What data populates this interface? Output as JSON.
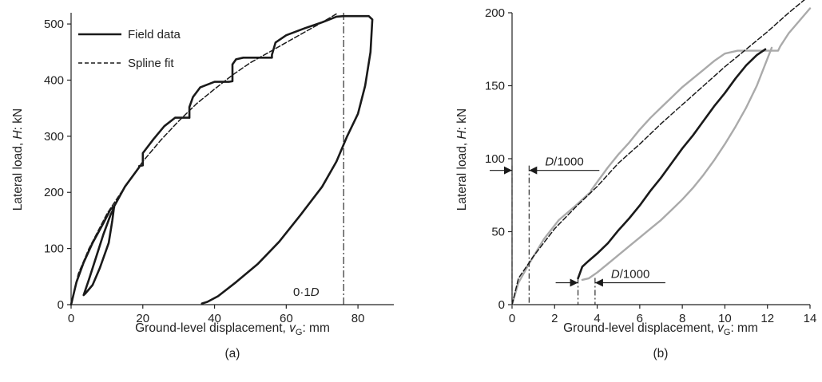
{
  "chart_data": [
    {
      "panel_label": "(a)",
      "type": "line",
      "xlabel_parts": [
        "Ground-level displacement, ",
        "v",
        "G",
        ": mm"
      ],
      "ylabel_parts": [
        "Lateral load, ",
        "H",
        ": kN"
      ],
      "xlim": [
        0,
        90
      ],
      "ylim": [
        0,
        520
      ],
      "xticks": [
        0,
        20,
        40,
        60,
        80
      ],
      "yticks": [
        0,
        100,
        200,
        300,
        400,
        500
      ],
      "grid": false,
      "legend_placement": "top-left",
      "series": [
        {
          "name": "Field data",
          "style": "solid",
          "color": "#1a1a1a",
          "x": [
            0,
            1.5,
            3.5,
            6,
            9,
            11,
            12,
            11.5,
            10.5,
            8,
            6,
            4,
            3.5,
            5,
            7,
            9,
            11,
            12,
            12,
            15,
            19,
            19,
            20,
            20,
            23,
            26,
            29,
            33,
            33,
            34,
            36,
            40,
            44,
            45,
            45,
            46,
            48,
            52,
            56,
            56,
            57,
            60,
            65,
            70,
            74,
            76,
            78,
            80,
            83,
            84,
            83.5,
            82,
            80,
            77,
            74,
            70,
            64,
            58,
            52,
            46,
            41,
            38,
            36.5
          ],
          "y": [
            0,
            40,
            75,
            110,
            145,
            170,
            175,
            150,
            110,
            65,
            35,
            20,
            17,
            45,
            85,
            125,
            160,
            173,
            175,
            210,
            245,
            247,
            248,
            270,
            295,
            318,
            333,
            333,
            352,
            370,
            387,
            397,
            397,
            398,
            428,
            437,
            440,
            440,
            440,
            445,
            467,
            480,
            492,
            503,
            513,
            514,
            514,
            514,
            514,
            508,
            450,
            390,
            340,
            300,
            255,
            210,
            160,
            112,
            72,
            40,
            15,
            5,
            2
          ]
        },
        {
          "name": "Spline fit",
          "style": "dashed",
          "color": "#1a1a1a",
          "x": [
            0,
            2,
            5,
            10,
            15,
            20,
            25,
            30,
            35,
            40,
            45,
            50,
            55,
            60,
            65,
            70,
            74
          ],
          "y": [
            0,
            55,
            100,
            162,
            210,
            255,
            293,
            327,
            358,
            384,
            409,
            431,
            449,
            467,
            485,
            503,
            518
          ]
        }
      ],
      "annotations": [
        {
          "text_parts": [
            "0·1",
            "D"
          ],
          "x": 76,
          "line": "vertical dash-dot"
        }
      ]
    },
    {
      "panel_label": "(b)",
      "type": "line",
      "xlabel_parts": [
        "Ground-level displacement, ",
        "v",
        "G",
        ": mm"
      ],
      "ylabel_parts": [
        "Lateral load, ",
        "H",
        ": kN"
      ],
      "xlim": [
        0,
        14
      ],
      "ylim": [
        0,
        200
      ],
      "xticks": [
        0,
        2,
        4,
        6,
        8,
        10,
        12,
        14
      ],
      "yticks": [
        0,
        50,
        100,
        150,
        200
      ],
      "grid": false,
      "series": [
        {
          "style": "solid",
          "color": "#aaaaaa",
          "x": [
            0,
            0.3,
            0.8,
            1.5,
            2.2,
            3,
            3.6,
            3.7,
            3.7,
            3.9,
            4.5,
            5,
            5.5,
            6,
            6.5,
            7,
            7.5,
            8,
            8.5,
            9,
            9.5,
            10,
            10.6,
            11.5,
            12.5,
            12.6,
            13,
            14
          ],
          "y": [
            0,
            15,
            28,
            45,
            58,
            68,
            76,
            77,
            78,
            82,
            94,
            103,
            111,
            120,
            128,
            135,
            142,
            149,
            155,
            161,
            167,
            172,
            174,
            174,
            174,
            177,
            186,
            203
          ]
        },
        {
          "style": "solid",
          "color": "#aaaaaa",
          "x": [
            12.2,
            11.5,
            11,
            10.5,
            10,
            9.5,
            9,
            8.5,
            8,
            7.5,
            7,
            6.5,
            6,
            5.5,
            5,
            4.5,
            4,
            3.6,
            3.3
          ],
          "y": [
            176,
            150,
            135,
            122,
            110,
            99,
            89,
            80,
            72,
            65,
            58,
            52,
            46,
            40,
            34,
            28,
            22,
            18,
            17
          ]
        },
        {
          "style": "solid",
          "color": "#1a1a1a",
          "x": [
            3.1,
            3.3,
            3.6,
            4,
            4.5,
            5,
            5.5,
            6,
            6.5,
            7,
            7.5,
            8,
            8.5,
            9,
            9.5,
            10,
            10.5,
            11,
            11.5,
            11.9
          ],
          "y": [
            18,
            26,
            30,
            35,
            42,
            51,
            59,
            68,
            78,
            87,
            97,
            107,
            116,
            126,
            136,
            145,
            155,
            164,
            171,
            175
          ]
        },
        {
          "style": "dashed",
          "color": "#1a1a1a",
          "x": [
            0,
            0.3,
            1,
            2,
            3,
            4,
            5,
            6,
            7,
            8,
            9,
            10,
            11,
            12,
            13,
            14
          ],
          "y": [
            0,
            18,
            33,
            52,
            67,
            81,
            97,
            110,
            124,
            137,
            150,
            163,
            175,
            187,
            200,
            212
          ]
        }
      ],
      "annotations": [
        {
          "text_parts": [
            "D",
            "/1000"
          ],
          "x_range": [
            0,
            0.8
          ],
          "y": 92
        },
        {
          "text_parts": [
            "D",
            "/1000"
          ],
          "x_range": [
            3.1,
            3.9
          ],
          "y": 15
        }
      ]
    }
  ]
}
